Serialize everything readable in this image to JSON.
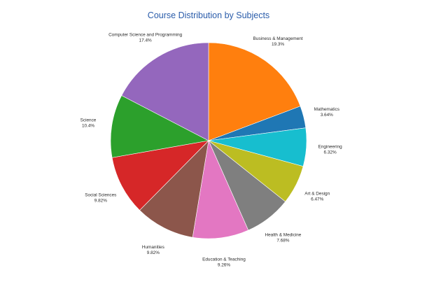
{
  "chart_data": {
    "type": "pie",
    "title": "Course Distribution by Subjects",
    "slices": [
      {
        "label": "Business & Management",
        "value": 19.3,
        "display": "19.3%",
        "color": "#ff7f0e"
      },
      {
        "label": "Mathematics",
        "value": 3.64,
        "display": "3.64%",
        "color": "#1f77b4"
      },
      {
        "label": "Engineering",
        "value": 6.32,
        "display": "6.32%",
        "color": "#17becf"
      },
      {
        "label": "Art & Design",
        "value": 6.47,
        "display": "6.47%",
        "color": "#bcbd22"
      },
      {
        "label": "Health & Medicine",
        "value": 7.68,
        "display": "7.68%",
        "color": "#7f7f7f"
      },
      {
        "label": "Education & Teaching",
        "value": 9.26,
        "display": "9.26%",
        "color": "#e377c2"
      },
      {
        "label": "Humanities",
        "value": 9.82,
        "display": "9.82%",
        "color": "#8c564b"
      },
      {
        "label": "Social Sciences",
        "value": 9.82,
        "display": "9.82%",
        "color": "#d62728"
      },
      {
        "label": "Science",
        "value": 10.4,
        "display": "10.4%",
        "color": "#2ca02c"
      },
      {
        "label": "Computer Science and Programming",
        "value": 17.4,
        "display": "17.4%",
        "color": "#9467bd"
      }
    ],
    "start_angle_deg": 0,
    "direction": "clockwise",
    "legend": "none"
  }
}
